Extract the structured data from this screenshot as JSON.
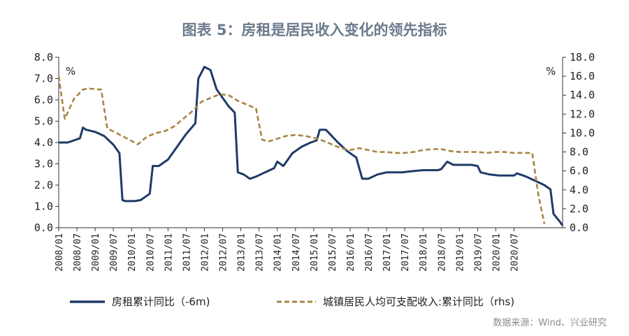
{
  "title": "图表 5：房租是居民收入变化的领先指标",
  "source": "数据来源：Wind、兴业研究",
  "colors": {
    "left_series": "#1f3a68",
    "right_series": "#a88544",
    "title": "#6b7b8c"
  },
  "chart_data": {
    "type": "line",
    "title": "图表 5：房租是居民收入变化的领先指标",
    "x_ticks": [
      "2008/01",
      "2008/07",
      "2009/01",
      "2009/07",
      "2010/01",
      "2010/07",
      "2011/01",
      "2011/07",
      "2012/01",
      "2012/07",
      "2013/01",
      "2013/07",
      "2014/01",
      "2014/07",
      "2015/01",
      "2015/07",
      "2016/01",
      "2016/07",
      "2017/01",
      "2017/07",
      "2018/01",
      "2018/07",
      "2019/01",
      "2019/07",
      "2020/01",
      "2020/07"
    ],
    "y_left": {
      "unit": "%",
      "min": 0,
      "max": 8,
      "ticks": [
        "0.0",
        "1.0",
        "2.0",
        "3.0",
        "4.0",
        "5.0",
        "6.0",
        "7.0",
        "8.0"
      ]
    },
    "y_right": {
      "unit": "%",
      "min": 0,
      "max": 18,
      "ticks": [
        "0.0",
        "2.0",
        "4.0",
        "6.0",
        "8.0",
        "10.0",
        "12.0",
        "14.0",
        "16.0",
        "18.0"
      ]
    },
    "legend_position": "bottom",
    "series": [
      {
        "name": "房租累计同比（-6m)",
        "axis": "left",
        "style": "solid",
        "points": [
          [
            "2008/01",
            4.0
          ],
          [
            "2008/04",
            4.0
          ],
          [
            "2008/06",
            4.1
          ],
          [
            "2008/08",
            4.2
          ],
          [
            "2008/09",
            4.7
          ],
          [
            "2008/10",
            4.6
          ],
          [
            "2009/01",
            4.5
          ],
          [
            "2009/04",
            4.3
          ],
          [
            "2009/07",
            3.9
          ],
          [
            "2009/09",
            3.5
          ],
          [
            "2009/10",
            1.3
          ],
          [
            "2009/11",
            1.25
          ],
          [
            "2010/02",
            1.25
          ],
          [
            "2010/04",
            1.3
          ],
          [
            "2010/06",
            1.5
          ],
          [
            "2010/07",
            1.6
          ],
          [
            "2010/08",
            2.9
          ],
          [
            "2010/10",
            2.9
          ],
          [
            "2011/01",
            3.2
          ],
          [
            "2011/04",
            3.8
          ],
          [
            "2011/07",
            4.4
          ],
          [
            "2011/10",
            4.9
          ],
          [
            "2011/11",
            7.0
          ],
          [
            "2012/01",
            7.55
          ],
          [
            "2012/03",
            7.4
          ],
          [
            "2012/05",
            6.5
          ],
          [
            "2012/07",
            6.1
          ],
          [
            "2012/09",
            5.7
          ],
          [
            "2012/11",
            5.4
          ],
          [
            "2012/12",
            2.6
          ],
          [
            "2013/02",
            2.5
          ],
          [
            "2013/04",
            2.3
          ],
          [
            "2013/06",
            2.4
          ],
          [
            "2013/09",
            2.6
          ],
          [
            "2013/12",
            2.8
          ],
          [
            "2014/01",
            3.1
          ],
          [
            "2014/03",
            2.9
          ],
          [
            "2014/06",
            3.5
          ],
          [
            "2014/09",
            3.8
          ],
          [
            "2014/12",
            4.0
          ],
          [
            "2015/02",
            4.1
          ],
          [
            "2015/03",
            4.6
          ],
          [
            "2015/05",
            4.6
          ],
          [
            "2015/07",
            4.3
          ],
          [
            "2015/09",
            4.0
          ],
          [
            "2015/12",
            3.6
          ],
          [
            "2016/03",
            3.3
          ],
          [
            "2016/04",
            2.8
          ],
          [
            "2016/05",
            2.3
          ],
          [
            "2016/07",
            2.3
          ],
          [
            "2016/10",
            2.5
          ],
          [
            "2017/01",
            2.6
          ],
          [
            "2017/06",
            2.6
          ],
          [
            "2017/09",
            2.65
          ],
          [
            "2018/01",
            2.7
          ],
          [
            "2018/06",
            2.7
          ],
          [
            "2018/07",
            2.75
          ],
          [
            "2018/09",
            3.1
          ],
          [
            "2018/11",
            2.95
          ],
          [
            "2019/03",
            2.95
          ],
          [
            "2019/05",
            2.95
          ],
          [
            "2019/07",
            2.9
          ],
          [
            "2019/08",
            2.6
          ],
          [
            "2019/11",
            2.5
          ],
          [
            "2020/02",
            2.45
          ],
          [
            "2020/06",
            2.45
          ],
          [
            "2020/07",
            2.45
          ],
          [
            "2020/08",
            2.55
          ],
          [
            "2020/11",
            2.4
          ],
          [
            "2021/02",
            2.2
          ],
          [
            "2021/05",
            2.0
          ],
          [
            "2021/07",
            1.8
          ],
          [
            "2021/08",
            0.65
          ],
          [
            "2021/10",
            0.3
          ],
          [
            "2021/11",
            0.1
          ]
        ]
      },
      {
        "name": "城镇居民人均可支配收入:累计同比（rhs)",
        "axis": "right",
        "style": "dashed",
        "points": [
          [
            "2008/01",
            16.0
          ],
          [
            "2008/03",
            11.5
          ],
          [
            "2008/06",
            13.6
          ],
          [
            "2008/09",
            14.6
          ],
          [
            "2008/11",
            14.7
          ],
          [
            "2009/02",
            14.6
          ],
          [
            "2009/03",
            14.6
          ],
          [
            "2009/05",
            10.5
          ],
          [
            "2009/08",
            10.0
          ],
          [
            "2009/11",
            9.5
          ],
          [
            "2010/02",
            9.0
          ],
          [
            "2010/03",
            8.8
          ],
          [
            "2010/06",
            9.6
          ],
          [
            "2010/09",
            10.0
          ],
          [
            "2010/12",
            10.2
          ],
          [
            "2011/03",
            10.7
          ],
          [
            "2011/06",
            11.5
          ],
          [
            "2011/09",
            12.3
          ],
          [
            "2011/12",
            13.3
          ],
          [
            "2012/03",
            13.7
          ],
          [
            "2012/06",
            14.1
          ],
          [
            "2012/09",
            14.0
          ],
          [
            "2012/12",
            13.4
          ],
          [
            "2013/03",
            13.0
          ],
          [
            "2013/06",
            12.6
          ],
          [
            "2013/08",
            9.3
          ],
          [
            "2013/10",
            9.1
          ],
          [
            "2014/01",
            9.4
          ],
          [
            "2014/04",
            9.7
          ],
          [
            "2014/07",
            9.8
          ],
          [
            "2014/10",
            9.7
          ],
          [
            "2015/01",
            9.5
          ],
          [
            "2015/04",
            9.2
          ],
          [
            "2015/07",
            8.8
          ],
          [
            "2015/10",
            8.4
          ],
          [
            "2016/01",
            8.2
          ],
          [
            "2016/04",
            8.4
          ],
          [
            "2016/07",
            8.2
          ],
          [
            "2016/10",
            8.0
          ],
          [
            "2017/01",
            8.0
          ],
          [
            "2017/04",
            7.9
          ],
          [
            "2017/07",
            7.9
          ],
          [
            "2017/10",
            8.0
          ],
          [
            "2018/01",
            8.2
          ],
          [
            "2018/04",
            8.3
          ],
          [
            "2018/07",
            8.3
          ],
          [
            "2018/10",
            8.1
          ],
          [
            "2019/01",
            8.0
          ],
          [
            "2019/04",
            8.0
          ],
          [
            "2019/07",
            8.0
          ],
          [
            "2019/10",
            7.9
          ],
          [
            "2020/01",
            8.0
          ],
          [
            "2020/04",
            8.0
          ],
          [
            "2020/07",
            7.9
          ],
          [
            "2020/10",
            7.9
          ],
          [
            "2021/01",
            7.9
          ],
          [
            "2021/03",
            3.5
          ],
          [
            "2021/05",
            0.4
          ]
        ]
      }
    ]
  }
}
